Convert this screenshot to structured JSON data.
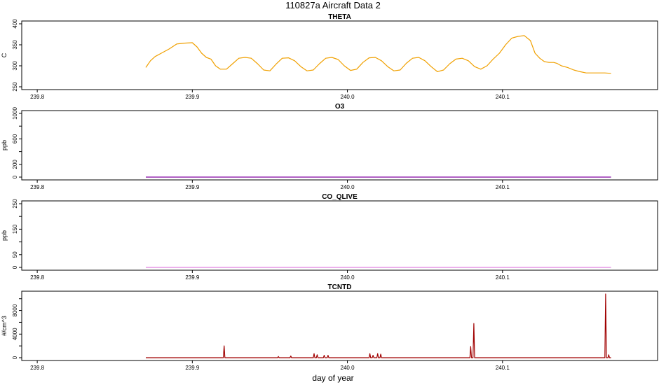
{
  "title": "110827a   Aircraft Data 2",
  "xlabel": "day of year",
  "chart_data": [
    {
      "type": "line",
      "title": "THETA",
      "ylabel": "C",
      "color": "#f0a000",
      "xlim": [
        239.79,
        240.2
      ],
      "ylim": [
        250,
        400
      ],
      "yticks": [
        250,
        300,
        350,
        400
      ],
      "xticks": [
        "239.8",
        "239.9",
        "240.0",
        "240.1"
      ],
      "series": [
        {
          "x": [
            239.87,
            239.873,
            239.876,
            239.88,
            239.885,
            239.89,
            239.895,
            239.9,
            239.903,
            239.906,
            239.909,
            239.912,
            239.915,
            239.918,
            239.922,
            239.926,
            239.93,
            239.934,
            239.938,
            239.942,
            239.946,
            239.95,
            239.954,
            239.958,
            239.962,
            239.966,
            239.97,
            239.974,
            239.978,
            239.982,
            239.986,
            239.99,
            239.994,
            239.998,
            240.002,
            240.006,
            240.01,
            240.014,
            240.018,
            240.022,
            240.026,
            240.03,
            240.034,
            240.038,
            240.042,
            240.046,
            240.05,
            240.054,
            240.058,
            240.062,
            240.066,
            240.07,
            240.074,
            240.078,
            240.082,
            240.086,
            240.09,
            240.094,
            240.098,
            240.102,
            240.106,
            240.11,
            240.114,
            240.118,
            240.121,
            240.124,
            240.127,
            240.13,
            240.133,
            240.135,
            240.138,
            240.142,
            240.146,
            240.15,
            240.154,
            240.158,
            240.162,
            240.166,
            240.17
          ],
          "y": [
            296,
            312,
            322,
            330,
            340,
            352,
            354,
            355,
            345,
            330,
            320,
            316,
            300,
            292,
            292,
            305,
            318,
            320,
            318,
            305,
            290,
            288,
            304,
            318,
            319,
            312,
            298,
            288,
            290,
            305,
            318,
            320,
            315,
            300,
            289,
            292,
            308,
            319,
            320,
            312,
            298,
            288,
            290,
            306,
            318,
            320,
            312,
            298,
            286,
            290,
            305,
            316,
            318,
            312,
            298,
            292,
            300,
            316,
            330,
            350,
            366,
            370,
            372,
            360,
            330,
            318,
            310,
            308,
            308,
            306,
            300,
            296,
            290,
            286,
            283,
            283,
            283,
            283,
            282
          ]
        }
      ]
    },
    {
      "type": "line",
      "title": "O3",
      "ylabel": "ppb",
      "color": "#8000a0",
      "xlim": [
        239.79,
        240.2
      ],
      "ylim": [
        0,
        1000
      ],
      "yticks": [
        0,
        200,
        600,
        1000
      ],
      "extra_minor_ticks": [
        400,
        800
      ],
      "xticks": [
        "239.8",
        "239.9",
        "240.0",
        "240.1"
      ],
      "series": [
        {
          "x": [
            239.87,
            240.17
          ],
          "y": [
            0,
            0
          ]
        }
      ]
    },
    {
      "type": "line",
      "title": "CO_QLIVE",
      "ylabel": "ppb",
      "color": "#e080e0",
      "xlim": [
        239.79,
        240.2
      ],
      "ylim": [
        0,
        250
      ],
      "yticks": [
        0,
        50,
        150,
        250
      ],
      "extra_minor_ticks": [
        100,
        200
      ],
      "xticks": [
        "239.8",
        "239.9",
        "240.0",
        "240.1"
      ],
      "series": [
        {
          "x": [
            239.87,
            240.17
          ],
          "y": [
            0,
            0
          ]
        }
      ]
    },
    {
      "type": "line",
      "title": "TCNTD",
      "ylabel": "#/cm^3",
      "color": "#a00000",
      "xlim": [
        239.79,
        240.2
      ],
      "ylim": [
        0,
        10800
      ],
      "yticks": [
        0,
        4000,
        8000
      ],
      "extra_minor_ticks": [
        2000,
        6000,
        10000
      ],
      "xticks": [
        "239.8",
        "239.9",
        "240.0",
        "240.1"
      ],
      "series": [
        {
          "x": [
            239.87,
            239.92,
            239.9205,
            239.921,
            239.955,
            239.9555,
            239.956,
            239.963,
            239.9635,
            239.964,
            239.978,
            239.9785,
            239.979,
            239.98,
            239.9805,
            239.981,
            239.9845,
            239.985,
            239.9855,
            239.987,
            239.9875,
            239.988,
            240.014,
            240.0145,
            240.015,
            240.016,
            240.0165,
            240.017,
            240.019,
            240.0195,
            240.02,
            240.021,
            240.0215,
            240.022,
            240.079,
            240.0795,
            240.08,
            240.081,
            240.0815,
            240.082,
            240.166,
            240.1665,
            240.167,
            240.168,
            240.1685,
            240.169,
            240.17
          ],
          "y": [
            0,
            0,
            2000,
            0,
            0,
            200,
            0,
            0,
            300,
            0,
            0,
            700,
            0,
            0,
            500,
            0,
            0,
            400,
            0,
            0,
            400,
            0,
            0,
            700,
            0,
            0,
            400,
            0,
            0,
            700,
            0,
            0,
            600,
            0,
            0,
            1900,
            0,
            0,
            5800,
            0,
            0,
            10800,
            0,
            0,
            500,
            0,
            0
          ]
        }
      ]
    }
  ]
}
